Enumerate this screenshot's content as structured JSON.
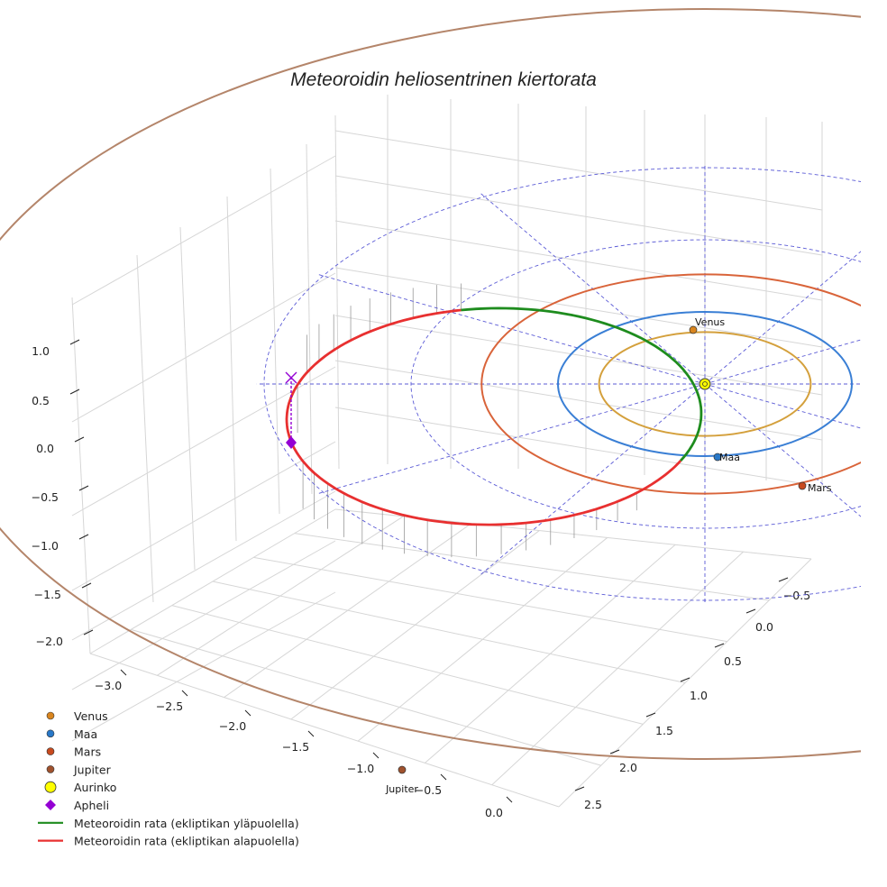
{
  "chart_data": {
    "type": "3d-orbit",
    "title": "Meteoroidin heliosentrinen kiertorata",
    "x_ticks": [
      "−3.0",
      "−2.5",
      "−2.0",
      "−1.5",
      "−1.0",
      "−0.5",
      "0.0"
    ],
    "y_ticks": [
      "−0.5",
      "0.0",
      "0.5",
      "1.0",
      "1.5",
      "2.0",
      "2.5"
    ],
    "z_ticks": [
      "1.0",
      "0.5",
      "0.0",
      "−0.5",
      "−1.0",
      "−1.5",
      "−2.0"
    ],
    "orbits": [
      {
        "name": "Venus",
        "semi_major_au": 0.72,
        "color": "#d4a03c"
      },
      {
        "name": "Maa",
        "semi_major_au": 1.0,
        "color": "#3a7fd5"
      },
      {
        "name": "Mars",
        "semi_major_au": 1.52,
        "color": "#d9643a"
      },
      {
        "name": "Jupiter",
        "semi_major_au": 5.2,
        "color": "#b4856a"
      }
    ],
    "planets": [
      {
        "name": "Venus",
        "label": "Venus",
        "color": "#d9851e"
      },
      {
        "name": "Maa",
        "label": "Maa",
        "color": "#2878c8"
      },
      {
        "name": "Mars",
        "label": "Mars",
        "color": "#c84a1e"
      },
      {
        "name": "Jupiter",
        "label": "Jupiter",
        "color": "#a0522d"
      }
    ],
    "sun": {
      "name": "Aurinko",
      "color": "#ffff00"
    },
    "aphelion": {
      "name": "Apheli",
      "color": "#9400d3"
    },
    "meteoroid_orbit": {
      "above": {
        "label": "Meteoroidin rata (ekliptikan yläpuolella)",
        "color": "#1e8c1e"
      },
      "below": {
        "label": "Meteoroidin rata (ekliptikan alapuolella)",
        "color": "#e83030"
      }
    },
    "reference_circles_au": [
      1.0,
      2.0,
      3.0
    ],
    "legend": [
      {
        "label": "Venus",
        "marker": "dot",
        "color": "#d9851e"
      },
      {
        "label": "Maa",
        "marker": "dot",
        "color": "#2878c8"
      },
      {
        "label": "Mars",
        "marker": "dot",
        "color": "#c84a1e"
      },
      {
        "label": "Jupiter",
        "marker": "dot",
        "color": "#a0522d"
      },
      {
        "label": "Aurinko",
        "marker": "bigdot",
        "color": "#ffff00"
      },
      {
        "label": "Apheli",
        "marker": "diamond",
        "color": "#9400d3"
      },
      {
        "label": "Meteoroidin rata (ekliptikan yläpuolella)",
        "marker": "line",
        "color": "#1e8c1e"
      },
      {
        "label": "Meteoroidin rata (ekliptikan alapuolella)",
        "marker": "line",
        "color": "#e83030"
      }
    ]
  }
}
